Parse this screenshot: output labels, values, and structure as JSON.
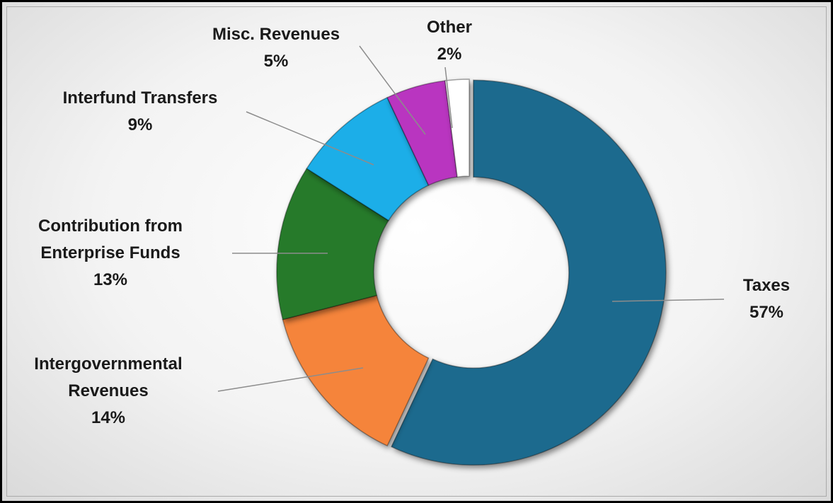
{
  "chart_data": {
    "type": "donut",
    "categories": [
      "Taxes",
      "Intergovernmental Revenues",
      "Contribution from Enterprise Funds",
      "Interfund Transfers",
      "Misc. Revenues",
      "Other"
    ],
    "values": [
      57,
      14,
      13,
      9,
      5,
      2
    ],
    "value_labels": [
      "57%",
      "14%",
      "13%",
      "9%",
      "5%",
      "2%"
    ],
    "colors": [
      "#1f6b8e",
      "#f5843a",
      "#267a2b",
      "#1aaee8",
      "#b935c0",
      "#ffffff"
    ]
  }
}
